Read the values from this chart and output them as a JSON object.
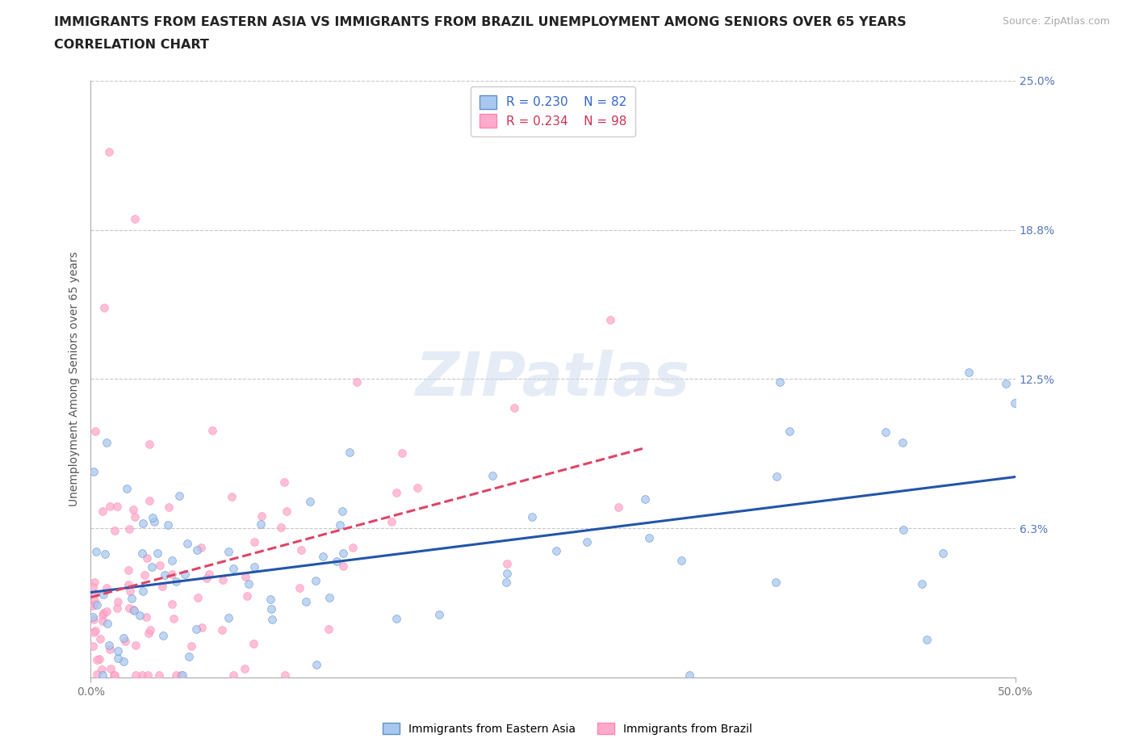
{
  "title_line1": "IMMIGRANTS FROM EASTERN ASIA VS IMMIGRANTS FROM BRAZIL UNEMPLOYMENT AMONG SENIORS OVER 65 YEARS",
  "title_line2": "CORRELATION CHART",
  "source_text": "Source: ZipAtlas.com",
  "ylabel": "Unemployment Among Seniors over 65 years",
  "xlim": [
    0,
    0.5
  ],
  "ylim": [
    0,
    0.25
  ],
  "ytick_vals": [
    0.0,
    0.0625,
    0.125,
    0.1875,
    0.25
  ],
  "ytick_labels_right": [
    "",
    "6.3%",
    "12.5%",
    "18.8%",
    "25.0%"
  ],
  "grid_color": "#c8c8c8",
  "background_color": "#ffffff",
  "watermark": "ZIPatlas",
  "legend_r1": "R = 0.230",
  "legend_n1": "N = 82",
  "legend_r2": "R = 0.234",
  "legend_n2": "N = 98",
  "color_eastern_asia": "#a8c8f0",
  "color_brazil": "#ffaacc",
  "color_ea_edge": "#6090c8",
  "color_br_edge": "#ff88aa",
  "trendline_color_eastern_asia": "#2255aa",
  "trendline_color_brazil": "#dd4466",
  "title_fontsize": 11.5,
  "subtitle_fontsize": 11.5,
  "axis_label_fontsize": 10,
  "tick_fontsize": 10,
  "legend_fontsize": 11,
  "scatter_size": 50,
  "scatter_alpha": 0.75,
  "trendline_lw": 2.2,
  "legend_text_color_ea": "#3366cc",
  "legend_text_color_br": "#cc3355"
}
